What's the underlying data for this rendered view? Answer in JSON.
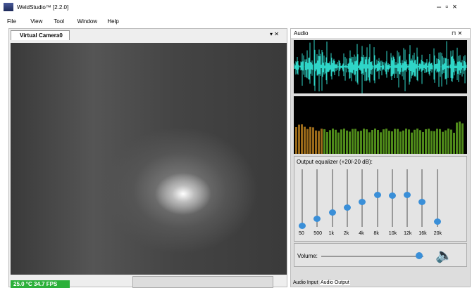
{
  "window": {
    "title": "WeldStudio™ [2.2.0]"
  },
  "menu": [
    "File",
    "View",
    "Tool",
    "Window",
    "Help"
  ],
  "camera_panel": {
    "tab": "Virtual Camera0",
    "status": "25.0 °C  34.7 FPS"
  },
  "audio_panel": {
    "title": "Audio",
    "equalizer_label": "Output equalizer (+20/-20 dB):",
    "bands": [
      "50",
      "500",
      "1k",
      "2k",
      "4k",
      "8k",
      "10k",
      "12k",
      "16k",
      "20k"
    ],
    "volume_label": "Volume:",
    "tabs": [
      "Audio Input",
      "Audio Output"
    ]
  }
}
